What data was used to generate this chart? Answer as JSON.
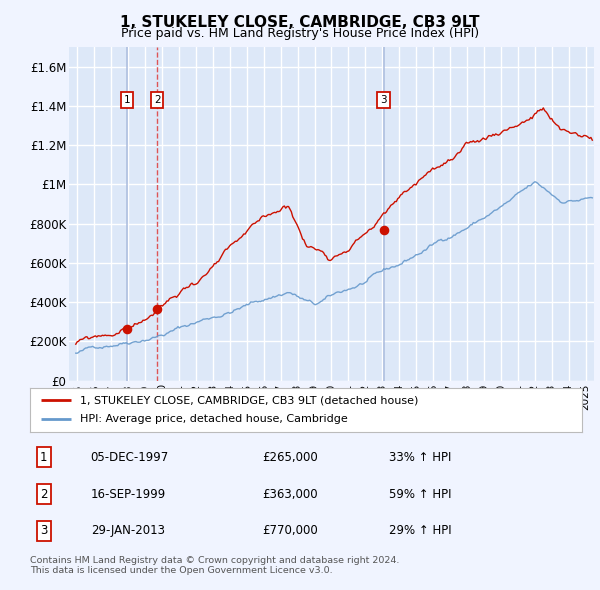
{
  "title": "1, STUKELEY CLOSE, CAMBRIDGE, CB3 9LT",
  "subtitle": "Price paid vs. HM Land Registry's House Price Index (HPI)",
  "background_color": "#f0f4ff",
  "plot_bg_color": "#dde8f8",
  "grid_color": "#ffffff",
  "hpi_line_color": "#6699cc",
  "price_line_color": "#cc1100",
  "sale_marker_color": "#cc1100",
  "vline_color_solid": "#aabbdd",
  "vline_color_dashed": "#dd4444",
  "ylabel_ticks": [
    "£0",
    "£200K",
    "£400K",
    "£600K",
    "£800K",
    "£1M",
    "£1.2M",
    "£1.4M",
    "£1.6M"
  ],
  "ytick_values": [
    0,
    200000,
    400000,
    600000,
    800000,
    1000000,
    1200000,
    1400000,
    1600000
  ],
  "ylim": [
    0,
    1700000
  ],
  "sales": [
    {
      "num": 1,
      "date_x": 1997.92,
      "price": 265000,
      "label": "05-DEC-1997",
      "pct": "33% ↑ HPI"
    },
    {
      "num": 2,
      "date_x": 1999.71,
      "price": 363000,
      "label": "16-SEP-1999",
      "pct": "59% ↑ HPI"
    },
    {
      "num": 3,
      "date_x": 2013.08,
      "price": 770000,
      "label": "29-JAN-2013",
      "pct": "29% ↑ HPI"
    }
  ],
  "legend_price_label": "1, STUKELEY CLOSE, CAMBRIDGE, CB3 9LT (detached house)",
  "legend_hpi_label": "HPI: Average price, detached house, Cambridge",
  "footer": "Contains HM Land Registry data © Crown copyright and database right 2024.\nThis data is licensed under the Open Government Licence v3.0.",
  "xlim": [
    1994.5,
    2025.5
  ],
  "xtick_years": [
    1995,
    1996,
    1997,
    1998,
    1999,
    2000,
    2001,
    2002,
    2003,
    2004,
    2005,
    2006,
    2007,
    2008,
    2009,
    2010,
    2011,
    2012,
    2013,
    2014,
    2015,
    2016,
    2017,
    2018,
    2019,
    2020,
    2021,
    2022,
    2023,
    2024,
    2025
  ]
}
